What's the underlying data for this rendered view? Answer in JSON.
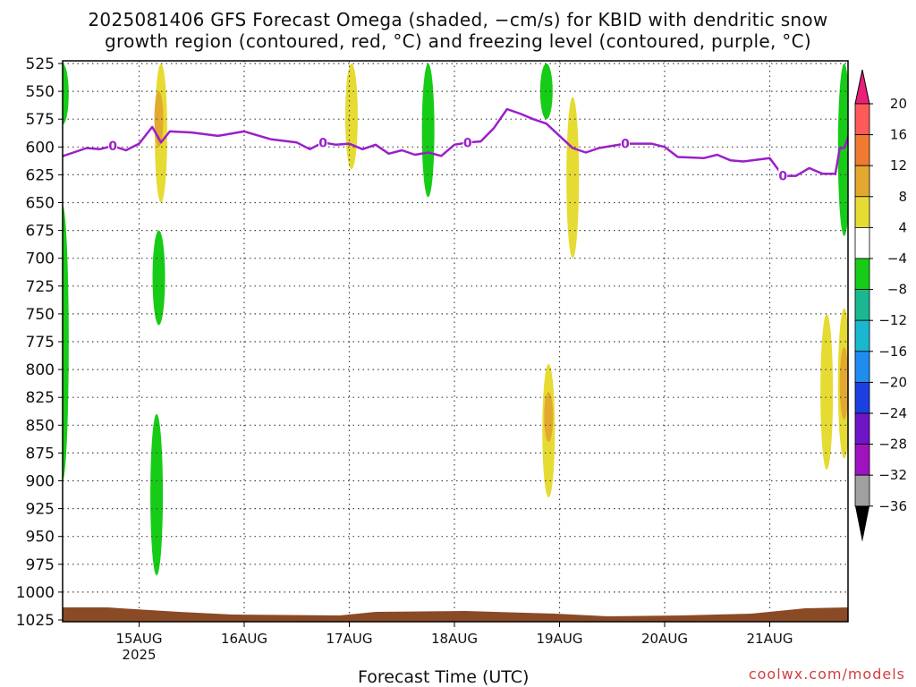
{
  "title_line1": "2025081406 GFS Forecast Omega (shaded, −cm/s) for KBID with dendritic snow",
  "title_line2": "growth region (contoured, red, °C) and freezing level (contoured, purple, °C)",
  "x_label": "Forecast Time (UTC)",
  "credit": "coolwx.com/models",
  "colors": {
    "freezing_level": "#9b1fc9",
    "terrain": "#8b4a26",
    "grid": "#444444"
  },
  "chart_data": {
    "type": "heatmap",
    "y_axis": {
      "label": "",
      "ticks": [
        525,
        550,
        575,
        600,
        625,
        650,
        675,
        700,
        725,
        750,
        775,
        800,
        825,
        850,
        875,
        900,
        925,
        950,
        975,
        1000,
        1025
      ],
      "inverted": true,
      "unit": "hPa"
    },
    "x_axis": {
      "start": "2025-08-14T06:00Z",
      "end": "2025-08-21T18:00Z",
      "ticks": [
        {
          "time": "2025-08-15T00:00Z",
          "label": "15AUG",
          "sublabel": "2025"
        },
        {
          "time": "2025-08-16T00:00Z",
          "label": "16AUG"
        },
        {
          "time": "2025-08-17T00:00Z",
          "label": "17AUG"
        },
        {
          "time": "2025-08-18T00:00Z",
          "label": "18AUG"
        },
        {
          "time": "2025-08-19T00:00Z",
          "label": "19AUG"
        },
        {
          "time": "2025-08-20T00:00Z",
          "label": "20AUG"
        },
        {
          "time": "2025-08-21T00:00Z",
          "label": "21AUG"
        }
      ]
    },
    "grid": true,
    "colorbar": {
      "levels": [
        20,
        16,
        12,
        8,
        4,
        -4,
        -8,
        -12,
        -16,
        -20,
        -24,
        -28,
        -32,
        -36
      ],
      "colors": [
        "#ff5a5a",
        "#f07b30",
        "#e3a92e",
        "#e6db32",
        "#ffffff",
        "#16cc16",
        "#1ab890",
        "#1ab8d0",
        "#1f8cf0",
        "#1c3fe0",
        "#7014c8",
        "#a012c0",
        "#a0a0a0"
      ],
      "top_arrow": "#e8207a",
      "bottom_arrow": "#000000"
    },
    "freezing_level": {
      "label": "0",
      "label_times": [
        "2025-08-14T18:00Z",
        "2025-08-16T18:00Z",
        "2025-08-18T03:00Z",
        "2025-08-19T15:00Z",
        "2025-08-21T03:00Z"
      ],
      "points": [
        [
          "2025-08-14T06:00Z",
          609
        ],
        [
          "2025-08-14T09:00Z",
          605
        ],
        [
          "2025-08-14T12:00Z",
          601
        ],
        [
          "2025-08-14T15:00Z",
          602
        ],
        [
          "2025-08-14T18:00Z",
          599
        ],
        [
          "2025-08-14T21:00Z",
          603
        ],
        [
          "2025-08-15T00:00Z",
          597
        ],
        [
          "2025-08-15T03:00Z",
          582
        ],
        [
          "2025-08-15T05:00Z",
          596
        ],
        [
          "2025-08-15T07:00Z",
          586
        ],
        [
          "2025-08-15T12:00Z",
          587
        ],
        [
          "2025-08-15T18:00Z",
          590
        ],
        [
          "2025-08-15T21:00Z",
          588
        ],
        [
          "2025-08-16T00:00Z",
          586
        ],
        [
          "2025-08-16T06:00Z",
          593
        ],
        [
          "2025-08-16T12:00Z",
          596
        ],
        [
          "2025-08-16T15:00Z",
          602
        ],
        [
          "2025-08-16T18:00Z",
          596
        ],
        [
          "2025-08-16T21:00Z",
          598
        ],
        [
          "2025-08-17T00:00Z",
          597
        ],
        [
          "2025-08-17T03:00Z",
          602
        ],
        [
          "2025-08-17T06:00Z",
          598
        ],
        [
          "2025-08-17T09:00Z",
          606
        ],
        [
          "2025-08-17T12:00Z",
          603
        ],
        [
          "2025-08-17T15:00Z",
          607
        ],
        [
          "2025-08-17T18:00Z",
          605
        ],
        [
          "2025-08-17T21:00Z",
          608
        ],
        [
          "2025-08-18T00:00Z",
          598
        ],
        [
          "2025-08-18T03:00Z",
          596
        ],
        [
          "2025-08-18T06:00Z",
          595
        ],
        [
          "2025-08-18T09:00Z",
          583
        ],
        [
          "2025-08-18T12:00Z",
          566
        ],
        [
          "2025-08-18T15:00Z",
          570
        ],
        [
          "2025-08-18T18:00Z",
          575
        ],
        [
          "2025-08-18T21:00Z",
          579
        ],
        [
          "2025-08-19T00:00Z",
          590
        ],
        [
          "2025-08-19T03:00Z",
          601
        ],
        [
          "2025-08-19T06:00Z",
          605
        ],
        [
          "2025-08-19T09:00Z",
          601
        ],
        [
          "2025-08-19T15:00Z",
          597
        ],
        [
          "2025-08-19T21:00Z",
          597
        ],
        [
          "2025-08-20T00:00Z",
          600
        ],
        [
          "2025-08-20T03:00Z",
          609
        ],
        [
          "2025-08-20T09:00Z",
          610
        ],
        [
          "2025-08-20T12:00Z",
          607
        ],
        [
          "2025-08-20T15:00Z",
          612
        ],
        [
          "2025-08-20T18:00Z",
          613
        ],
        [
          "2025-08-21T00:00Z",
          610
        ],
        [
          "2025-08-21T03:00Z",
          626
        ],
        [
          "2025-08-21T06:00Z",
          626
        ],
        [
          "2025-08-21T09:00Z",
          619
        ],
        [
          "2025-08-21T12:00Z",
          624
        ],
        [
          "2025-08-21T15:00Z",
          624
        ],
        [
          "2025-08-21T16:00Z",
          601
        ],
        [
          "2025-08-21T17:00Z",
          601
        ],
        [
          "2025-08-21T18:00Z",
          590
        ]
      ]
    },
    "omega_regions": [
      {
        "t": "2025-08-14T06:30Z",
        "p_top": 525,
        "p_bot": 580,
        "value": -6
      },
      {
        "t": "2025-08-14T06:30Z",
        "p_top": 652,
        "p_bot": 900,
        "value": -6
      },
      {
        "t": "2025-08-15T05:00Z",
        "p_top": 525,
        "p_bot": 650,
        "value": 6
      },
      {
        "t": "2025-08-15T04:30Z",
        "p_top": 550,
        "p_bot": 600,
        "value": 10
      },
      {
        "t": "2025-08-15T04:30Z",
        "p_top": 675,
        "p_bot": 760,
        "value": -6
      },
      {
        "t": "2025-08-15T04:00Z",
        "p_top": 840,
        "p_bot": 985,
        "value": -6
      },
      {
        "t": "2025-08-17T00:30Z",
        "p_top": 525,
        "p_bot": 620,
        "value": 6
      },
      {
        "t": "2025-08-17T18:00Z",
        "p_top": 525,
        "p_bot": 645,
        "value": -6
      },
      {
        "t": "2025-08-18T21:00Z",
        "p_top": 525,
        "p_bot": 575,
        "value": -6
      },
      {
        "t": "2025-08-19T03:00Z",
        "p_top": 555,
        "p_bot": 700,
        "value": 6
      },
      {
        "t": "2025-08-18T21:30Z",
        "p_top": 795,
        "p_bot": 915,
        "value": 6
      },
      {
        "t": "2025-08-18T21:30Z",
        "p_top": 820,
        "p_bot": 865,
        "value": 10
      },
      {
        "t": "2025-08-21T13:00Z",
        "p_top": 750,
        "p_bot": 890,
        "value": 6
      },
      {
        "t": "2025-08-21T17:00Z",
        "p_top": 525,
        "p_bot": 680,
        "value": -6
      },
      {
        "t": "2025-08-21T17:00Z",
        "p_top": 745,
        "p_bot": 880,
        "value": 6
      },
      {
        "t": "2025-08-21T17:00Z",
        "p_top": 780,
        "p_bot": 845,
        "value": 10
      }
    ]
  }
}
